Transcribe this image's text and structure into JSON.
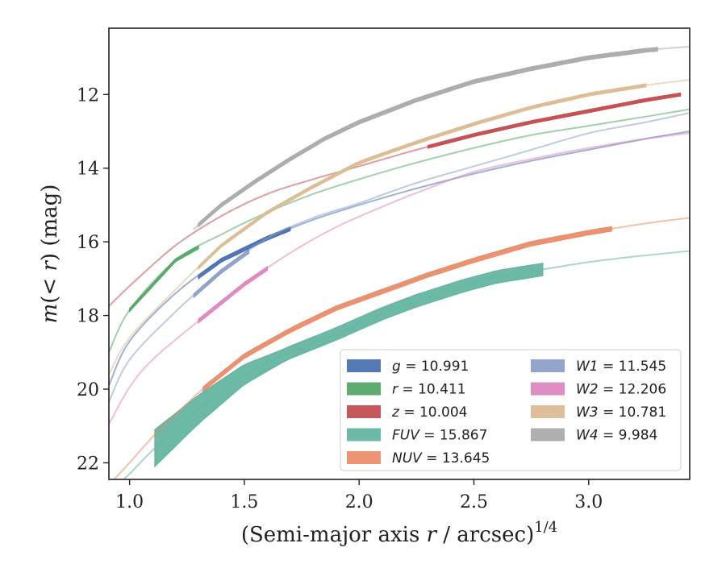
{
  "chart_data": {
    "type": "line",
    "xlabel_text": "(Semi-major axis ",
    "xlabel_var": "r",
    "xlabel_unit": " / arcsec)",
    "xlabel_exp": "1/4",
    "ylabel_m": "m",
    "ylabel_paren": "(< ",
    "ylabel_r": "r",
    "ylabel_close": ") (mag)",
    "xlim": [
      0.91,
      3.44
    ],
    "ylim": [
      10.2,
      22.45
    ],
    "y_inverted": true,
    "xticks": [
      1.0,
      1.5,
      2.0,
      2.5,
      3.0
    ],
    "xtick_labels": [
      "1.0",
      "1.5",
      "2.0",
      "2.5",
      "3.0"
    ],
    "yticks": [
      12,
      14,
      16,
      18,
      20,
      22
    ],
    "ytick_labels": [
      "12",
      "14",
      "16",
      "18",
      "20",
      "22"
    ],
    "grid": false,
    "legend_position": "lower-right",
    "series": [
      {
        "band": "g",
        "value": "10.991",
        "color": "#4c72b0",
        "x": [
          0.91,
          1.0,
          1.2,
          1.4,
          1.6,
          1.8,
          2.0,
          2.25,
          2.5,
          2.75,
          3.0,
          3.25,
          3.44
        ],
        "y": [
          19.9,
          18.7,
          17.4,
          16.5,
          15.9,
          15.4,
          15.0,
          14.55,
          14.15,
          13.8,
          13.5,
          13.2,
          13.0
        ],
        "band_x": [
          1.3,
          1.7
        ],
        "halfwidth": 0.05
      },
      {
        "band": "r",
        "value": "10.411",
        "color": "#55a868",
        "x": [
          0.91,
          1.0,
          1.2,
          1.4,
          1.6,
          1.8,
          2.0,
          2.25,
          2.5,
          2.75,
          3.0,
          3.25,
          3.44
        ],
        "y": [
          19.0,
          17.85,
          16.5,
          15.8,
          15.2,
          14.7,
          14.3,
          13.85,
          13.45,
          13.1,
          12.85,
          12.6,
          12.4
        ],
        "band_x": [
          1.0,
          1.3
        ],
        "halfwidth": 0.04
      },
      {
        "band": "z",
        "value": "10.004",
        "color": "#c44e52",
        "x": [
          0.91,
          1.0,
          1.2,
          1.4,
          1.6,
          1.8,
          2.0,
          2.25,
          2.5,
          2.75,
          3.0,
          3.25,
          3.4
        ],
        "y": [
          17.75,
          17.2,
          16.1,
          15.3,
          14.7,
          14.3,
          13.95,
          13.5,
          13.1,
          12.75,
          12.45,
          12.15,
          12.0
        ],
        "band_x": [
          2.3,
          3.4
        ],
        "halfwidth": 0.04
      },
      {
        "band": "FUV",
        "value": "15.867",
        "color": "#64b5a0",
        "x": [
          0.91,
          1.0,
          1.11,
          1.3,
          1.5,
          1.7,
          1.9,
          2.1,
          2.25,
          2.45,
          2.6,
          2.8,
          3.0,
          3.2,
          3.44
        ],
        "y": [
          22.8,
          22.3,
          21.6,
          20.55,
          19.6,
          19.0,
          18.5,
          17.95,
          17.6,
          17.2,
          16.95,
          16.75,
          16.55,
          16.4,
          16.25
        ],
        "band_x": [
          1.11,
          2.8
        ],
        "halfwidth": 0.17,
        "bandwidth_start": 0.5
      },
      {
        "band": "NUV",
        "value": "13.645",
        "color": "#e98e6c",
        "x": [
          0.91,
          1.0,
          1.1,
          1.2,
          1.3,
          1.5,
          1.7,
          1.9,
          2.1,
          2.3,
          2.5,
          2.75,
          3.0,
          3.25,
          3.44
        ],
        "y": [
          22.6,
          22.0,
          21.3,
          20.7,
          20.1,
          19.1,
          18.4,
          17.8,
          17.35,
          16.9,
          16.5,
          16.05,
          15.75,
          15.5,
          15.35
        ],
        "band_x": [
          1.32,
          3.1
        ],
        "halfwidth": 0.06
      },
      {
        "band": "W1",
        "value": "11.545",
        "color": "#8da0c8",
        "x": [
          0.91,
          1.0,
          1.2,
          1.4,
          1.6,
          1.8,
          2.0,
          2.25,
          2.5,
          2.75,
          3.0,
          3.25,
          3.44
        ],
        "y": [
          20.35,
          19.2,
          17.9,
          16.8,
          15.9,
          15.35,
          14.95,
          14.4,
          13.95,
          13.5,
          13.05,
          12.75,
          12.5
        ],
        "band_x": [
          1.28,
          1.52
        ],
        "halfwidth": 0.05
      },
      {
        "band": "W2",
        "value": "12.206",
        "color": "#dd88c0",
        "x": [
          0.91,
          1.0,
          1.1,
          1.3,
          1.5,
          1.7,
          1.9,
          2.1,
          2.3,
          2.5,
          2.75,
          3.0,
          3.25,
          3.44
        ],
        "y": [
          20.95,
          19.95,
          19.2,
          18.15,
          17.15,
          16.3,
          15.6,
          15.05,
          14.55,
          14.1,
          13.75,
          13.45,
          13.2,
          13.05
        ],
        "band_x": [
          1.3,
          1.6
        ],
        "halfwidth": 0.05
      },
      {
        "band": "W3",
        "value": "10.781",
        "color": "#dbbd93",
        "x": [
          0.91,
          1.0,
          1.2,
          1.4,
          1.6,
          1.8,
          2.0,
          2.25,
          2.5,
          2.75,
          3.0,
          3.25,
          3.44
        ],
        "y": [
          19.6,
          18.6,
          17.3,
          16.1,
          15.2,
          14.5,
          13.85,
          13.3,
          12.8,
          12.35,
          12.0,
          11.75,
          11.6
        ],
        "band_x": [
          1.3,
          3.25
        ],
        "halfwidth": 0.04
      },
      {
        "band": "W4",
        "value": "9.984",
        "color": "#ababab",
        "x": [
          1.28,
          1.4,
          1.55,
          1.7,
          1.85,
          2.0,
          2.25,
          2.5,
          2.75,
          3.0,
          3.25,
          3.44
        ],
        "y": [
          15.65,
          15.0,
          14.35,
          13.75,
          13.2,
          12.75,
          12.15,
          11.65,
          11.3,
          11.0,
          10.8,
          10.7
        ],
        "band_x": [
          1.3,
          3.3
        ],
        "halfwidth": 0.05
      }
    ]
  }
}
